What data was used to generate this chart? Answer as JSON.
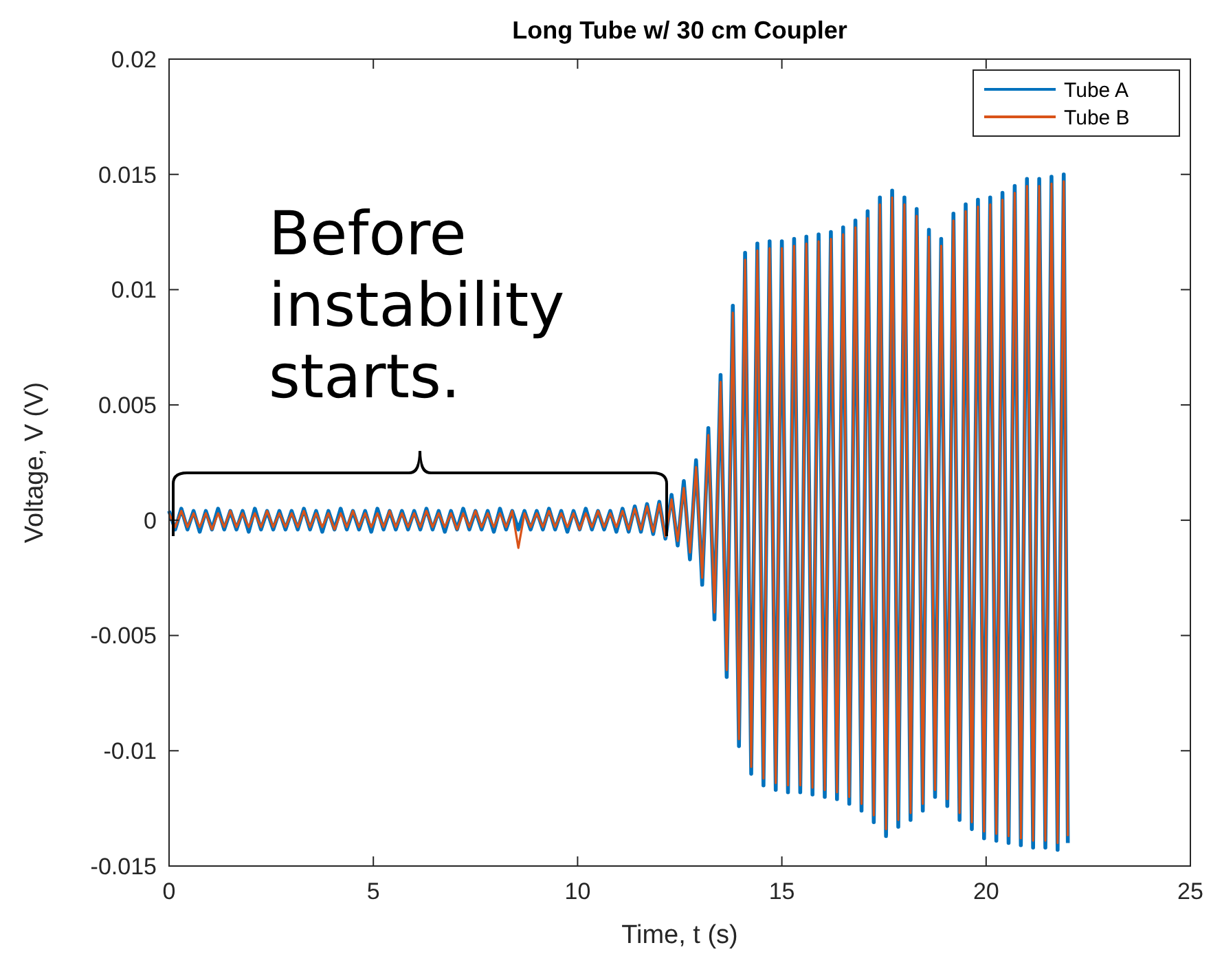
{
  "chart_data": {
    "type": "line",
    "title": "Long Tube w/ 30 cm Coupler",
    "xlabel": "Time, t (s)",
    "ylabel": "Voltage, V (V)",
    "xlim": [
      0,
      25
    ],
    "xticks": [
      0,
      5,
      10,
      15,
      20,
      25
    ],
    "ylim": [
      -0.015,
      0.02
    ],
    "yticks": [
      -0.015,
      -0.01,
      -0.005,
      0,
      0.005,
      0.01,
      0.015,
      0.02
    ],
    "grid": false,
    "legend": "top right",
    "marker": "none",
    "line_style": "solid",
    "annotations": [
      "Before instability starts."
    ],
    "x": [
      0,
      0.15,
      0.3,
      0.45,
      0.6,
      0.75,
      0.9,
      1.05,
      1.2,
      1.35,
      1.5,
      1.65,
      1.8,
      1.95,
      2.1,
      2.25,
      2.4,
      2.55,
      2.7,
      2.85,
      3,
      3.15,
      3.3,
      3.45,
      3.6,
      3.75,
      3.9,
      4.05,
      4.2,
      4.35,
      4.5,
      4.65,
      4.8,
      4.95,
      5.1,
      5.25,
      5.4,
      5.55,
      5.7,
      5.85,
      6,
      6.15,
      6.3,
      6.45,
      6.6,
      6.75,
      6.9,
      7.05,
      7.2,
      7.35,
      7.5,
      7.65,
      7.8,
      7.95,
      8.1,
      8.25,
      8.4,
      8.55,
      8.7,
      8.85,
      9,
      9.15,
      9.3,
      9.45,
      9.6,
      9.75,
      9.9,
      10.05,
      10.2,
      10.35,
      10.5,
      10.65,
      10.8,
      10.95,
      11.1,
      11.25,
      11.4,
      11.55,
      11.7,
      11.85,
      12,
      12.15,
      12.3,
      12.45,
      12.6,
      12.75,
      12.9,
      13.05,
      13.2,
      13.35,
      13.5,
      13.65,
      13.8,
      13.95,
      14.1,
      14.25,
      14.4,
      14.55,
      14.7,
      14.85,
      15,
      15.15,
      15.3,
      15.45,
      15.6,
      15.75,
      15.9,
      16.05,
      16.2,
      16.35,
      16.5,
      16.65,
      16.8,
      16.95,
      17.1,
      17.25,
      17.4,
      17.55,
      17.7,
      17.85,
      18,
      18.15,
      18.3,
      18.45,
      18.6,
      18.75,
      18.9,
      19.05,
      19.2,
      19.35,
      19.5,
      19.65,
      19.8,
      19.95,
      20.1,
      20.25,
      20.4,
      20.55,
      20.7,
      20.85,
      21,
      21.15,
      21.3,
      21.45,
      21.6,
      21.75,
      21.9,
      22
    ],
    "series": [
      {
        "name": "Tube A",
        "color": "#0072bd",
        "values": [
          0.0004,
          -0.0004,
          0.0005,
          -0.0004,
          0.0004,
          -0.0005,
          0.0004,
          -0.0004,
          0.0005,
          -0.0004,
          0.0004,
          -0.0004,
          0.0004,
          -0.0005,
          0.0005,
          -0.0004,
          0.0004,
          -0.0004,
          0.0004,
          -0.0004,
          0.0004,
          -0.0004,
          0.0005,
          -0.0004,
          0.0004,
          -0.0005,
          0.0004,
          -0.0004,
          0.0005,
          -0.0004,
          0.0004,
          -0.0004,
          0.0004,
          -0.0005,
          0.0005,
          -0.0004,
          0.0004,
          -0.0004,
          0.0004,
          -0.0004,
          0.0004,
          -0.0004,
          0.0005,
          -0.0004,
          0.0004,
          -0.0005,
          0.0004,
          -0.0004,
          0.0005,
          -0.0004,
          0.0004,
          -0.0004,
          0.0004,
          -0.0005,
          0.0005,
          -0.0004,
          0.0004,
          -0.0004,
          0.0004,
          -0.0004,
          0.0004,
          -0.0004,
          0.0005,
          -0.0004,
          0.0004,
          -0.0005,
          0.0004,
          -0.0004,
          0.0005,
          -0.0004,
          0.0004,
          -0.0004,
          0.0004,
          -0.0005,
          0.0005,
          -0.0005,
          0.0006,
          -0.0005,
          0.0007,
          -0.0006,
          0.0008,
          -0.0008,
          0.0011,
          -0.0011,
          0.0017,
          -0.0017,
          0.0026,
          -0.0028,
          0.004,
          -0.0043,
          0.0063,
          -0.0068,
          0.0093,
          -0.0098,
          0.0116,
          -0.011,
          0.012,
          -0.0115,
          0.0121,
          -0.0117,
          0.0121,
          -0.0118,
          0.0122,
          -0.0118,
          0.0123,
          -0.0119,
          0.0124,
          -0.012,
          0.0125,
          -0.0121,
          0.0127,
          -0.0123,
          0.013,
          -0.0126,
          0.0134,
          -0.0131,
          0.014,
          -0.0137,
          0.0143,
          -0.0133,
          0.014,
          -0.013,
          0.0135,
          -0.0126,
          0.0126,
          -0.012,
          0.0122,
          -0.0124,
          0.0133,
          -0.013,
          0.0137,
          -0.0134,
          0.0139,
          -0.0138,
          0.014,
          -0.0139,
          0.0142,
          -0.014,
          0.0145,
          -0.0141,
          0.0148,
          -0.0142,
          0.0148,
          -0.0142,
          0.0149,
          -0.0143,
          0.015,
          -0.014
        ]
      },
      {
        "name": "Tube B",
        "color": "#d95319",
        "values": [
          0.0003,
          -0.0003,
          0.0004,
          -0.0003,
          0.0003,
          -0.0003,
          0.0003,
          -0.0004,
          0.0003,
          -0.0003,
          0.0004,
          -0.0003,
          0.0003,
          -0.0003,
          0.0003,
          -0.0003,
          0.0004,
          -0.0003,
          0.0003,
          -0.0003,
          0.0003,
          -0.0003,
          0.0004,
          -0.0003,
          0.0003,
          -0.0003,
          0.0003,
          -0.0004,
          0.0003,
          -0.0003,
          0.0004,
          -0.0003,
          0.0003,
          -0.0003,
          0.0003,
          -0.0003,
          0.0004,
          -0.0003,
          0.0003,
          -0.0003,
          0.0003,
          -0.0003,
          0.0004,
          -0.0003,
          0.0003,
          -0.0003,
          0.0003,
          -0.0004,
          0.0003,
          -0.0003,
          0.0004,
          -0.0003,
          0.0003,
          -0.0003,
          0.0003,
          -0.0003,
          0.0004,
          -0.0012,
          0.0003,
          -0.0003,
          0.0003,
          -0.0003,
          0.0004,
          -0.0003,
          0.0003,
          -0.0003,
          0.0003,
          -0.0004,
          0.0003,
          -0.0003,
          0.0004,
          -0.0003,
          0.0003,
          -0.0003,
          0.0004,
          -0.0004,
          0.0005,
          -0.0004,
          0.0006,
          -0.0005,
          0.0007,
          -0.0007,
          0.0009,
          -0.0009,
          0.0014,
          -0.0014,
          0.0023,
          -0.0025,
          0.0037,
          -0.004,
          0.006,
          -0.0065,
          0.009,
          -0.0095,
          0.0113,
          -0.0107,
          0.0117,
          -0.0112,
          0.0118,
          -0.0114,
          0.0118,
          -0.0115,
          0.0119,
          -0.0115,
          0.012,
          -0.0116,
          0.0121,
          -0.0117,
          0.0122,
          -0.0118,
          0.0124,
          -0.012,
          0.0127,
          -0.0123,
          0.0131,
          -0.0128,
          0.0137,
          -0.0134,
          0.014,
          -0.013,
          0.0137,
          -0.0127,
          0.0132,
          -0.0123,
          0.0123,
          -0.0117,
          0.0119,
          -0.0121,
          0.013,
          -0.0127,
          0.0134,
          -0.0131,
          0.0136,
          -0.0135,
          0.0137,
          -0.0136,
          0.0139,
          -0.0137,
          0.0142,
          -0.0138,
          0.0145,
          -0.0139,
          0.0145,
          -0.0139,
          0.0146,
          -0.014,
          0.0147,
          -0.0137
        ]
      }
    ]
  }
}
